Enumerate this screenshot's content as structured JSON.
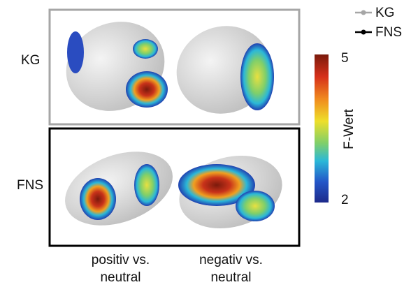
{
  "rows": [
    {
      "label": "KG"
    },
    {
      "label": "FNS"
    }
  ],
  "columns": [
    {
      "label": "positiv vs. neutral"
    },
    {
      "label": "negativ vs. neutral"
    }
  ],
  "legend": [
    {
      "label": "KG",
      "color": "#a6a6a6"
    },
    {
      "label": "FNS",
      "color": "#000000"
    }
  ],
  "colorbar": {
    "label": "F-Wert",
    "max": 5,
    "min": 2
  }
}
